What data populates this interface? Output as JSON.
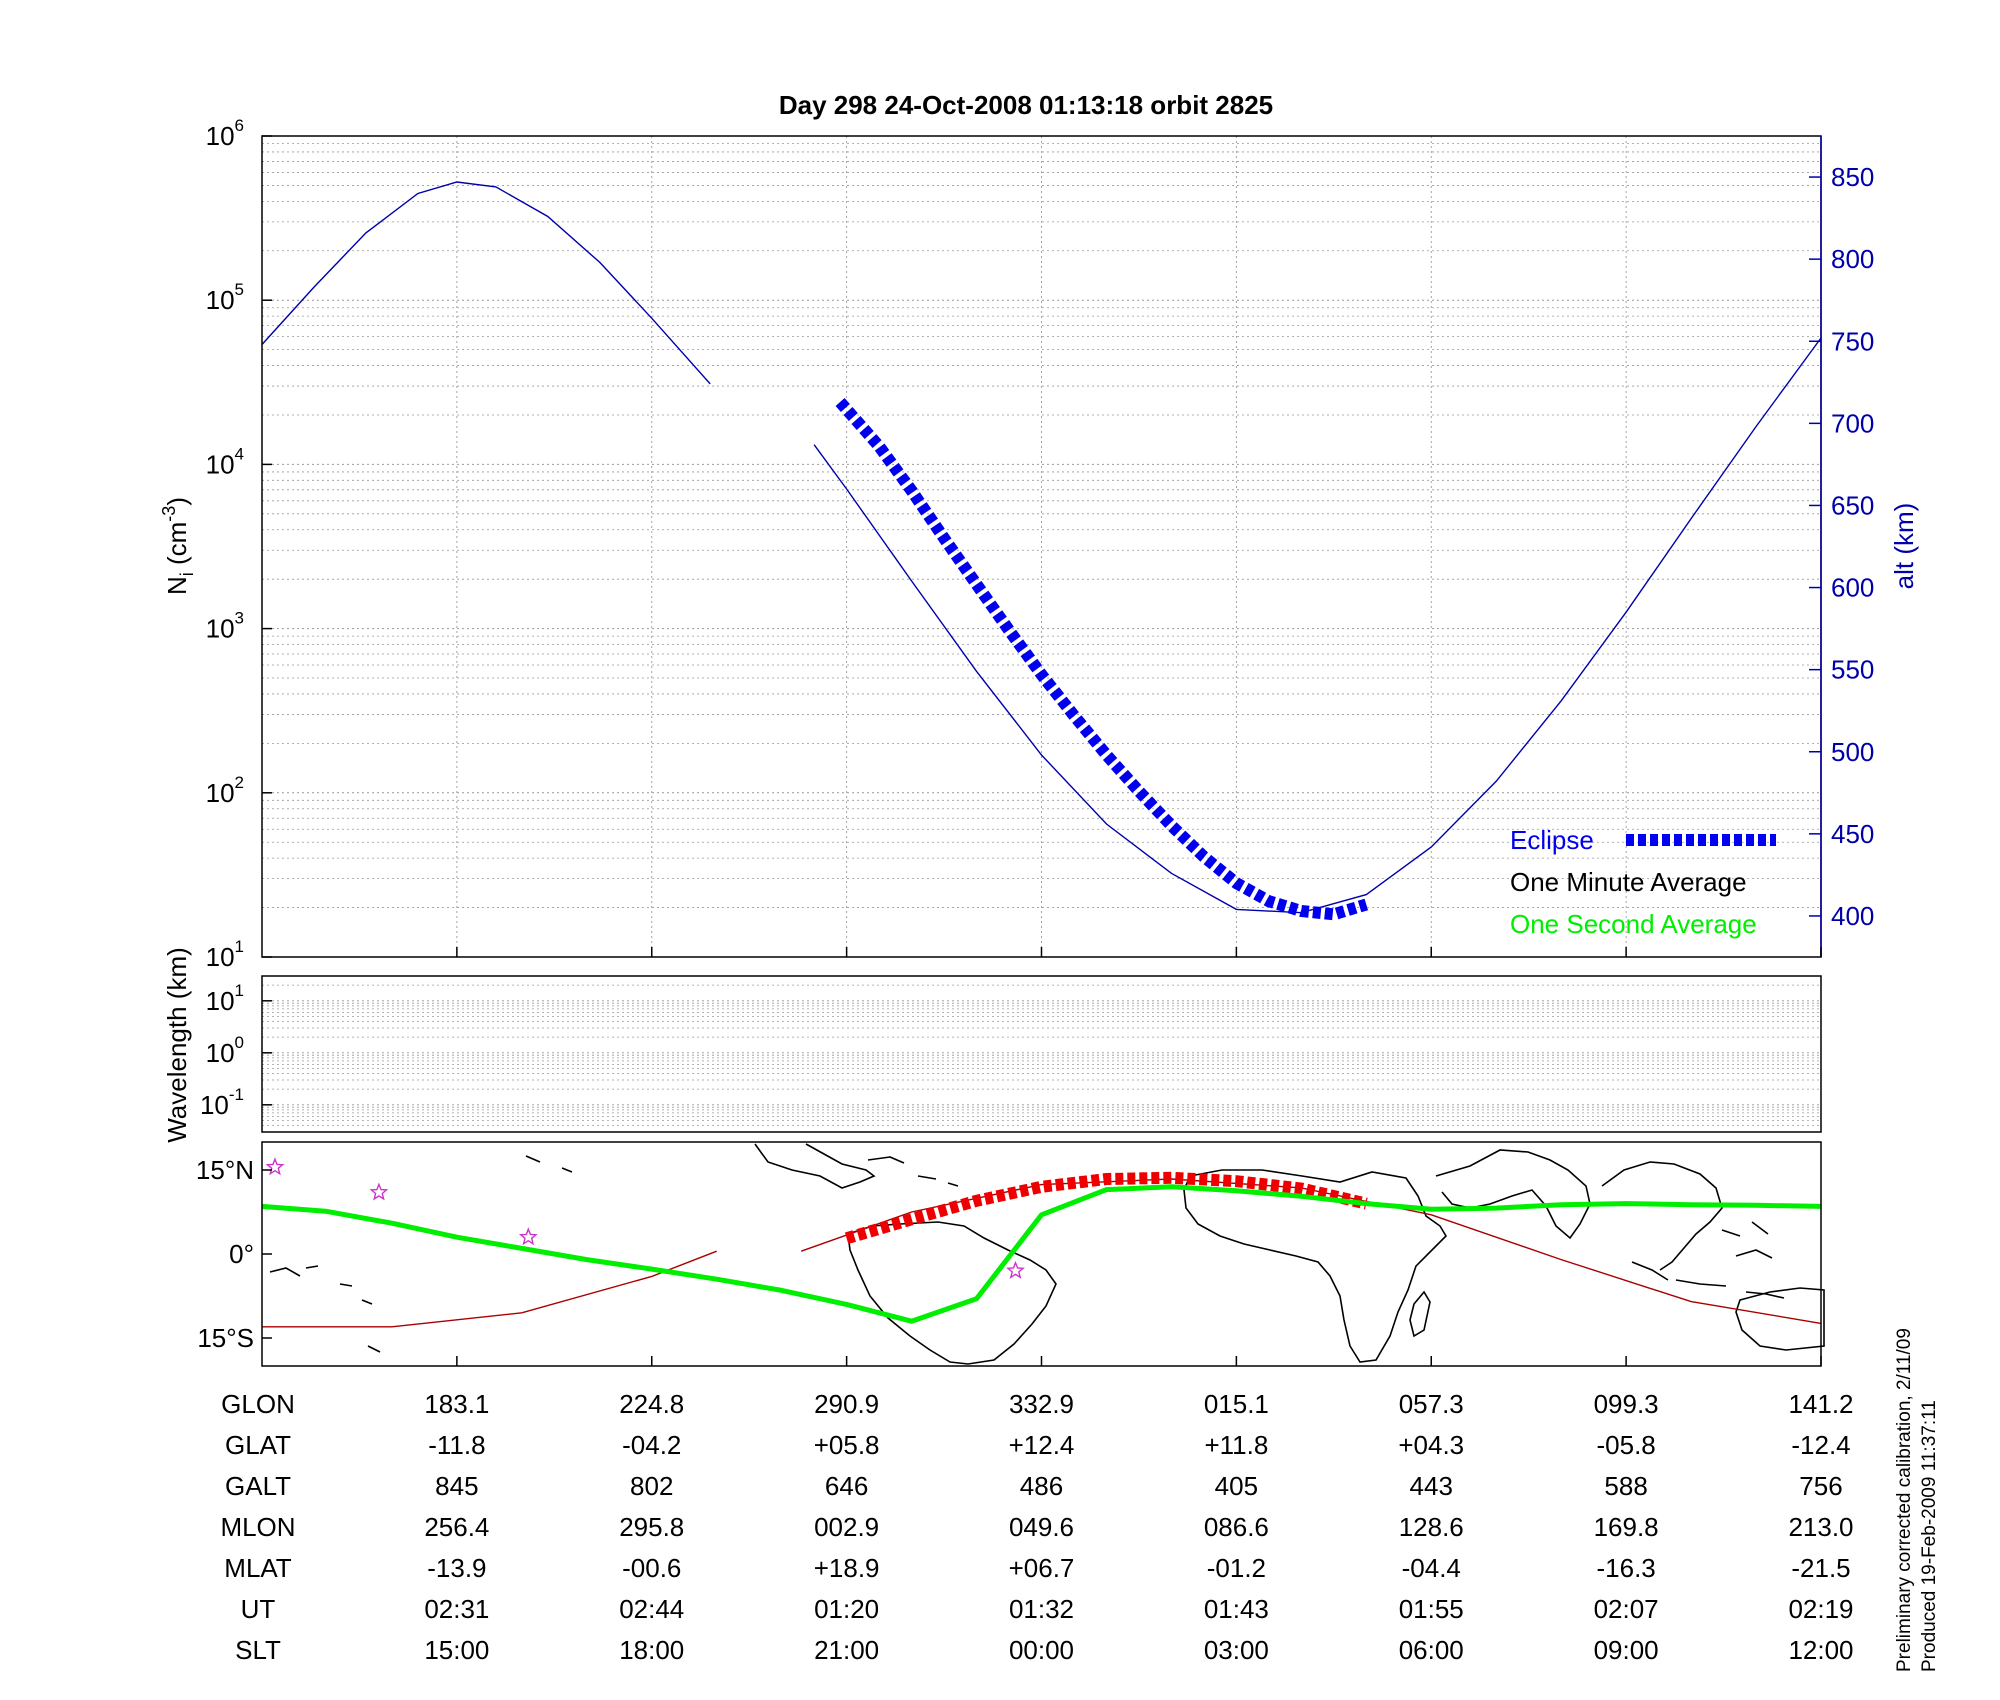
{
  "title": "Day 298  24-Oct-2008 01:13:18   orbit 2825",
  "footnote": {
    "line1": "Preliminary corrected calibration, 2/11/09",
    "line2": "Produced 19-Feb-2009 11:37:11"
  },
  "colors": {
    "altitude": "#0000aa",
    "eclipse": "#0000ee",
    "one_minute": "#000000",
    "one_second": "#00ee00",
    "track": "#aa0000",
    "track_eclipse": "#ee0000",
    "stars": "#cc33cc",
    "grid": "#999999"
  },
  "chart_data": [
    {
      "panel": "density",
      "type": "line",
      "ylabel_base": "N",
      "ylabel_sub": "i",
      "ylabel_unit_open": " (cm",
      "ylabel_unit_sup": "-3",
      "ylabel_unit_close": ")",
      "y_scale": "log",
      "ylim": [
        10,
        1000000
      ],
      "y_ticks": [
        {
          "base": "10",
          "exp": "1"
        },
        {
          "base": "10",
          "exp": "2"
        },
        {
          "base": "10",
          "exp": "3"
        },
        {
          "base": "10",
          "exp": "4"
        },
        {
          "base": "10",
          "exp": "5"
        },
        {
          "base": "10",
          "exp": "6"
        }
      ],
      "y2label": "alt (km)",
      "y2lim": [
        375,
        875
      ],
      "y2_ticks": [
        "400",
        "450",
        "500",
        "550",
        "600",
        "650",
        "700",
        "750",
        "800",
        "850"
      ],
      "x_unit": "SLT (hours, continuous)",
      "xlim": [
        12,
        36
      ],
      "grid": true,
      "legend_position": "bottom-right",
      "series": [
        {
          "name": "",
          "role": "altitude",
          "x": [
            12.0,
            12.8,
            13.6,
            14.4,
            15.0,
            15.6,
            16.4,
            17.2,
            18.0,
            18.9
          ],
          "y": [
            748,
            783,
            816,
            840,
            847,
            844,
            826,
            798,
            764,
            724
          ]
        },
        {
          "name": "",
          "role": "altitude",
          "x": [
            20.5,
            21.0,
            22.0,
            23.0,
            24.0,
            25.0,
            26.0,
            27.0,
            28.0,
            29.0,
            30.0,
            31.0,
            32.0,
            33.0,
            34.0,
            35.0,
            36.0
          ],
          "y": [
            687,
            660,
            604,
            549,
            498,
            456,
            426,
            404,
            402,
            413,
            442,
            482,
            531,
            585,
            642,
            698,
            752
          ]
        },
        {
          "name": "Eclipse",
          "role": "eclipse",
          "x": [
            20.9,
            21.5,
            22.0,
            22.5,
            23.0,
            23.5,
            24.0,
            24.5,
            25.0,
            25.5,
            26.0,
            26.5,
            27.0,
            27.5,
            28.0,
            28.5,
            29.0
          ],
          "y": [
            713,
            686,
            659,
            630,
            602,
            574,
            547,
            522,
            498,
            476,
            455,
            436,
            420,
            409,
            403,
            401,
            407
          ]
        },
        {
          "name": "One Minute Average",
          "role": "one_minute",
          "x": [],
          "y": []
        },
        {
          "name": "One Second Average",
          "role": "one_second",
          "x": [],
          "y": []
        }
      ]
    },
    {
      "panel": "wavelength",
      "type": "line",
      "ylabel": "Wavelength (km)",
      "y_scale": "log",
      "ylim": [
        0.03,
        30
      ],
      "y_ticks": [
        {
          "base": "10",
          "exp": "-1"
        },
        {
          "base": "10",
          "exp": "0"
        },
        {
          "base": "10",
          "exp": "1"
        }
      ],
      "grid": true,
      "series": []
    },
    {
      "panel": "map",
      "type": "line",
      "xlabel": "",
      "ylim": [
        -20,
        20
      ],
      "y_ticks": [
        {
          "value": 15,
          "label": "15",
          "suffix": "N"
        },
        {
          "value": 0,
          "label": "0",
          "suffix": ""
        },
        {
          "value": -15,
          "label": "15",
          "suffix": "S"
        }
      ],
      "series": [
        {
          "name": "",
          "role": "track",
          "x": [
            12.0,
            14.0,
            16.0,
            18.0,
            19.0
          ],
          "y": [
            -13.0,
            -13.0,
            -10.5,
            -4.0,
            0.5
          ]
        },
        {
          "name": "",
          "role": "track",
          "x": [
            20.3,
            22.0,
            24.0,
            26.0,
            28.0,
            30.0,
            32.0,
            34.0,
            36.0
          ],
          "y": [
            0.5,
            7.5,
            12.4,
            13.4,
            11.8,
            7.0,
            -1.0,
            -8.5,
            -12.4
          ]
        },
        {
          "name": "",
          "role": "track_eclipse",
          "x": [
            21.0,
            22.0,
            23.0,
            24.0,
            25.0,
            26.0,
            27.0,
            28.0,
            29.0
          ],
          "y": [
            2.8,
            6.2,
            9.5,
            12.0,
            13.4,
            13.6,
            13.0,
            11.7,
            9.0
          ]
        },
        {
          "name": "",
          "role": "one_second",
          "x": [
            12.0,
            13.0,
            14.0,
            15.0,
            16.0,
            17.0,
            18.0,
            19.0,
            20.0,
            21.0,
            22.0,
            23.0,
            24.0,
            25.0,
            26.0,
            27.0,
            28.0,
            29.0,
            30.0,
            31.0,
            32.0,
            33.0,
            34.0,
            35.0,
            36.0
          ],
          "y": [
            8.5,
            7.6,
            5.5,
            3.0,
            1.0,
            -1.0,
            -2.7,
            -4.5,
            -6.5,
            -9.0,
            -12.0,
            -8.0,
            7.0,
            11.5,
            12.0,
            11.3,
            10.3,
            9.0,
            8.0,
            8.2,
            8.8,
            9.0,
            8.8,
            8.7,
            8.5
          ]
        }
      ],
      "stars": {
        "x": [
          12.2,
          13.8,
          16.1,
          23.6
        ],
        "y": [
          15.5,
          11.0,
          3.0,
          -3.0
        ]
      }
    }
  ],
  "table": {
    "rows": [
      {
        "label": "GLON",
        "values": [
          "183.1",
          "224.8",
          "290.9",
          "332.9",
          "015.1",
          "057.3",
          "099.3",
          "141.2"
        ]
      },
      {
        "label": "GLAT",
        "values": [
          "-11.8",
          "-04.2",
          "+05.8",
          "+12.4",
          "+11.8",
          "+04.3",
          "-05.8",
          "-12.4"
        ]
      },
      {
        "label": "GALT",
        "values": [
          "845",
          "802",
          "646",
          "486",
          "405",
          "443",
          "588",
          "756"
        ]
      },
      {
        "label": "MLON",
        "values": [
          "256.4",
          "295.8",
          "002.9",
          "049.6",
          "086.6",
          "128.6",
          "169.8",
          "213.0"
        ]
      },
      {
        "label": "MLAT",
        "values": [
          "-13.9",
          "-00.6",
          "+18.9",
          "+06.7",
          "-01.2",
          "-04.4",
          "-16.3",
          "-21.5"
        ]
      },
      {
        "label": "UT",
        "values": [
          "02:31",
          "02:44",
          "01:20",
          "01:32",
          "01:43",
          "01:55",
          "02:07",
          "02:19"
        ]
      },
      {
        "label": "SLT",
        "values": [
          "15:00",
          "18:00",
          "21:00",
          "00:00",
          "03:00",
          "06:00",
          "09:00",
          "12:00"
        ]
      }
    ],
    "column_slt": [
      15,
      18,
      21,
      24,
      27,
      30,
      33,
      36
    ]
  }
}
